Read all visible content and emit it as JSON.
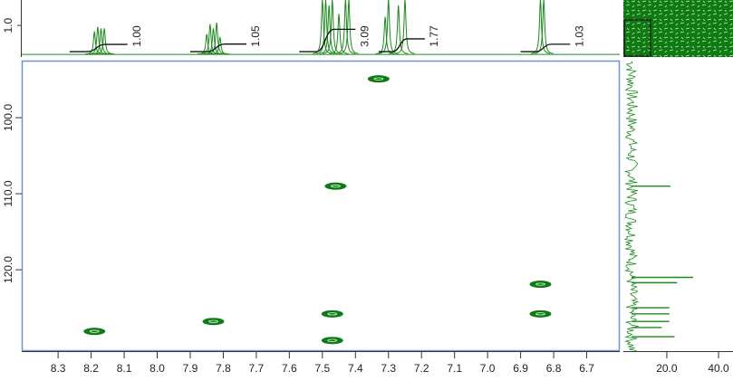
{
  "chart_data": [
    {
      "type": "spectrum",
      "xlim": [
        8.41,
        6.6
      ],
      "ylim": [
        -0.06,
        1.88
      ],
      "yticks": [
        {
          "value": 1,
          "label": "1.0"
        }
      ],
      "color": "#1a8a1a",
      "x": [
        8.19,
        8.18,
        8.17,
        8.16,
        7.85,
        7.84,
        7.83,
        7.82,
        7.81,
        7.5,
        7.49,
        7.48,
        7.47,
        7.45,
        7.43,
        7.42,
        7.31,
        7.3,
        7.27,
        7.25,
        6.84,
        6.83
      ],
      "values": [
        0.8,
        0.95,
        0.9,
        0.9,
        0.7,
        1.05,
        0.9,
        1.1,
        0.6,
        1.9,
        1.9,
        1.7,
        1.9,
        1.4,
        1.9,
        1.9,
        1.3,
        1.9,
        1.7,
        1.9,
        1.9,
        1.9
      ],
      "integrals": {
        "ranges": [
          [
            8.265,
            8.09
          ],
          [
            7.9,
            7.73
          ],
          [
            7.57,
            7.4
          ],
          [
            7.33,
            7.19
          ],
          [
            6.9,
            6.75
          ]
        ],
        "values": [
          1.0,
          1.05,
          3.09,
          1.77,
          1.03
        ],
        "value_labels": [
          "1.00",
          "1.05",
          "3.09",
          "1.77",
          "1.03"
        ]
      }
    },
    {
      "type": "scatter",
      "xlim": [
        8.41,
        6.6
      ],
      "ylim": [
        92.5,
        130.7
      ],
      "xticks": [
        8.3,
        8.2,
        8.1,
        {
          "value": 8,
          "label": "8.0"
        },
        7.9,
        7.8,
        7.7,
        7.6,
        7.5,
        7.4,
        7.3,
        7.2,
        7.1,
        {
          "value": 7,
          "label": "7.0"
        },
        6.9,
        6.8,
        6.7
      ],
      "yticks": [
        {
          "value": 100,
          "label": "100.0"
        },
        {
          "value": 110,
          "label": "110.0"
        },
        {
          "value": 120,
          "label": "120.0"
        }
      ],
      "color": "#0d7a14",
      "x": [
        7.33,
        7.46,
        6.84,
        7.47,
        6.84,
        7.83,
        8.19,
        7.47
      ],
      "values": [
        94.9,
        109.0,
        121.9,
        125.8,
        125.8,
        126.8,
        128.1,
        129.3
      ]
    },
    {
      "type": "projection",
      "xlim": [
        3.2,
        45.6
      ],
      "ylim": [
        92.5,
        130.7
      ],
      "xticks": [
        {
          "value": 20,
          "label": "20.0"
        },
        {
          "value": 40,
          "label": "40.0"
        }
      ],
      "color": "#1a8a1a",
      "y": [
        109.0,
        121.0,
        121.7,
        125.0,
        125.8,
        126.8,
        127.6,
        128.8
      ],
      "values": [
        21.4,
        30.2,
        24.0,
        21.0,
        21.0,
        21.0,
        18.0,
        23.0
      ]
    }
  ]
}
